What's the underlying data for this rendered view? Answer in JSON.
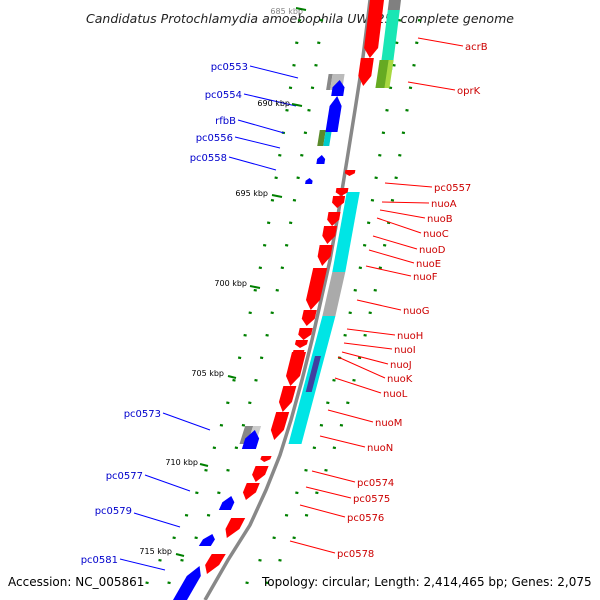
{
  "title": "Candidatus Protochlamydia amoebophila UWE25, complete genome",
  "accession": "Accession: NC_005861",
  "topology": "Topology: circular; Length: 2,414,465 bp; Genes: 2,075",
  "colors": {
    "forward_gene": "#0000ff",
    "reverse_gene": "#ff0000",
    "left_label": "#0000cc",
    "right_label": "#cc0000",
    "leader_left": "#0000ff",
    "leader_right": "#ff0000",
    "tick": "#008000",
    "backbone": "#888888"
  },
  "position_labels": [
    "685 kbp",
    "690 kbp",
    "695 kbp",
    "700 kbp",
    "705 kbp",
    "710 kbp",
    "715 kbp"
  ],
  "left_genes": [
    "pc0553",
    "pc0554",
    "rfbB",
    "pc0556",
    "pc0558",
    "pc0573",
    "pc0577",
    "pc0579",
    "pc0581"
  ],
  "right_genes": [
    "acrB",
    "oprK",
    "pc0557",
    "nuoA",
    "nuoB",
    "nuoC",
    "nuoD",
    "nuoE",
    "nuoF",
    "nuoG",
    "nuoH",
    "nuoI",
    "nuoJ",
    "nuoK",
    "nuoL",
    "nuoM",
    "nuoN",
    "pc0574",
    "pc0575",
    "pc0576",
    "pc0578"
  ]
}
